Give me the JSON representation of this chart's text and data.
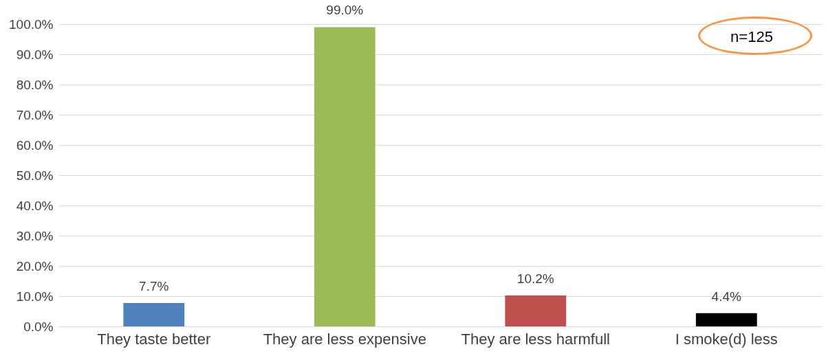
{
  "chart_data": {
    "type": "bar",
    "categories": [
      "They taste better",
      "They are less expensive",
      "They are less harmfull",
      "I smoke(d) less"
    ],
    "values": [
      7.7,
      99.0,
      10.2,
      4.4
    ],
    "colors": [
      "#4f81bd",
      "#9bbb59",
      "#c0504d",
      "#000000"
    ],
    "value_labels": [
      "7.7%",
      "99.0%",
      "10.2%",
      "4.4%"
    ],
    "ylim": [
      0,
      100
    ],
    "yticks": [
      {
        "value": 0,
        "label": "0.0%"
      },
      {
        "value": 10,
        "label": "10.0%"
      },
      {
        "value": 20,
        "label": "20.0%"
      },
      {
        "value": 30,
        "label": "30.0%"
      },
      {
        "value": 40,
        "label": "40.0%"
      },
      {
        "value": 50,
        "label": "50.0%"
      },
      {
        "value": 60,
        "label": "60.0%"
      },
      {
        "value": 70,
        "label": "70.0%"
      },
      {
        "value": 80,
        "label": "80.0%"
      },
      {
        "value": 90,
        "label": "90.0%"
      },
      {
        "value": 100,
        "label": "100.0%"
      }
    ],
    "grid": "y",
    "legend": false,
    "annotations": [
      "n=125"
    ]
  }
}
